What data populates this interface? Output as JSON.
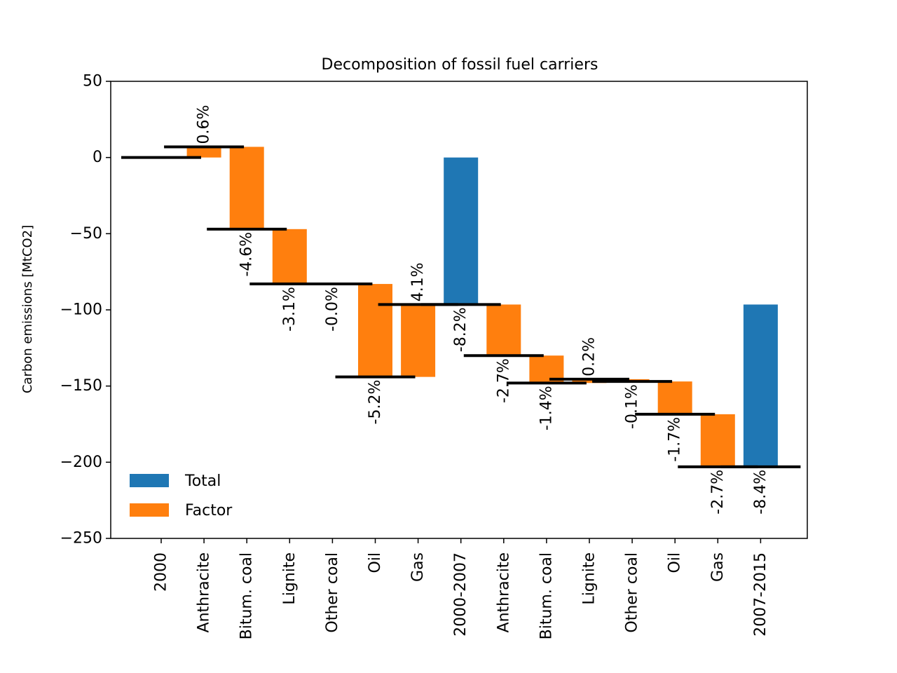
{
  "chart_data": {
    "type": "bar",
    "subtype": "waterfall",
    "title": "Decomposition of fossil fuel carriers",
    "xlabel": "",
    "ylabel": "Carbon emissions [MtCO2]",
    "ylim": [
      -250,
      50
    ],
    "yticks": [
      50,
      0,
      -50,
      -100,
      -150,
      -200,
      -250
    ],
    "ytick_labels": [
      "50",
      "0",
      "−50",
      "−100",
      "−150",
      "−200",
      "−250"
    ],
    "grid": false,
    "legend": {
      "position": "lower-left",
      "entries": [
        {
          "label": "Total",
          "color": "#1f77b4"
        },
        {
          "label": "Factor",
          "color": "#ff7f0e"
        }
      ]
    },
    "colors": {
      "total": "#1f77b4",
      "factor": "#ff7f0e",
      "level_line": "#000000"
    },
    "categories": [
      "2000",
      "Anthracite",
      "Bitum. coal",
      "Lignite",
      "Other coal",
      "Oil",
      "Gas",
      "2000-2007",
      "Anthracite",
      "Bitum. coal",
      "Lignite",
      "Other coal",
      "Oil",
      "Gas",
      "2007-2015"
    ],
    "bars": [
      {
        "kind": "start",
        "start": 0,
        "end": 0,
        "label": ""
      },
      {
        "kind": "factor",
        "start": 0,
        "end": 7,
        "label": "0.6%"
      },
      {
        "kind": "factor",
        "start": 7,
        "end": -47,
        "label": "-4.6%"
      },
      {
        "kind": "factor",
        "start": -47,
        "end": -83,
        "label": "-3.1%"
      },
      {
        "kind": "factor",
        "start": -83,
        "end": -83,
        "label": "-0.0%"
      },
      {
        "kind": "factor",
        "start": -83,
        "end": -144,
        "label": "-5.2%"
      },
      {
        "kind": "factor",
        "start": -144,
        "end": -96.5,
        "label": "4.1%"
      },
      {
        "kind": "total",
        "start": 0,
        "end": -96.5,
        "label": "-8.2%"
      },
      {
        "kind": "factor",
        "start": -96.5,
        "end": -130,
        "label": "-2.7%"
      },
      {
        "kind": "factor",
        "start": -130,
        "end": -148,
        "label": "-1.4%"
      },
      {
        "kind": "factor",
        "start": -148,
        "end": -145.5,
        "label": "0.2%"
      },
      {
        "kind": "factor",
        "start": -145.5,
        "end": -147,
        "label": "-0.1%"
      },
      {
        "kind": "factor",
        "start": -147,
        "end": -168.5,
        "label": "-1.7%"
      },
      {
        "kind": "factor",
        "start": -168.5,
        "end": -203,
        "label": "-2.7%"
      },
      {
        "kind": "total",
        "start": -96.5,
        "end": -203,
        "label": "-8.4%"
      }
    ]
  }
}
